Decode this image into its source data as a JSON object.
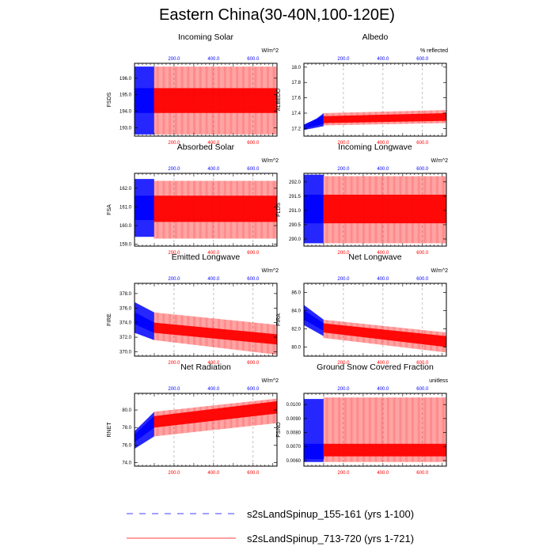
{
  "title": "Eastern China(30-40N,100-120E)",
  "colors": {
    "blue": "#0000ff",
    "red": "#ff0000",
    "grid": "#999999"
  },
  "legend": [
    {
      "label": "s2sLandSpinup_155-161 (yrs 1-100)",
      "color": "#0000ff",
      "dash": "dashed"
    },
    {
      "label": "s2sLandSpinup_713-720 (yrs 1-721)",
      "color": "#ff0000",
      "dash": "solid"
    }
  ],
  "chart_data": [
    {
      "type": "line",
      "title": "Incoming Solar",
      "ylabel": "FSDS",
      "units": "W/m^2",
      "xlim": [
        0,
        721
      ],
      "ylim": [
        192.5,
        196.9
      ],
      "yticks": [
        193.0,
        194.0,
        195.0,
        196.0
      ],
      "ytick_labels": [
        "193.0",
        "194.0",
        "195.0",
        "196.0"
      ],
      "xticks": [
        200,
        400,
        600
      ],
      "xtick_labels": [
        "200.0",
        "400.0",
        "600.0"
      ],
      "series": [
        {
          "name": "s2sLandSpinup_155-161 (yrs 1-100)",
          "years": [
            1,
            100
          ],
          "env_top": [
            196.7,
            196.7
          ],
          "env_bot": [
            192.6,
            192.6
          ],
          "band_top": [
            195.4,
            195.4
          ],
          "band_bot": [
            193.9,
            193.9
          ]
        },
        {
          "name": "s2sLandSpinup_713-720 (yrs 1-721)",
          "years": [
            100,
            721
          ],
          "env_top": [
            196.7,
            196.7
          ],
          "env_bot": [
            192.6,
            192.6
          ],
          "band_top": [
            195.4,
            195.4
          ],
          "band_bot": [
            193.9,
            193.9
          ]
        }
      ]
    },
    {
      "type": "line",
      "title": "Albedo",
      "ylabel": "ALBEDO",
      "units": "% reflected",
      "xlim": [
        0,
        721
      ],
      "ylim": [
        17.1,
        18.05
      ],
      "yticks": [
        17.2,
        17.4,
        17.6,
        17.8,
        18.0
      ],
      "ytick_labels": [
        "17.2",
        "17.4",
        "17.6",
        "17.8",
        "18.0"
      ],
      "xticks": [
        200,
        400,
        600
      ],
      "xtick_labels": [
        "200.0",
        "400.0",
        "600.0"
      ],
      "series": [
        {
          "name": "s2sLandSpinup_155-161 (yrs 1-100)",
          "years": [
            1,
            100
          ],
          "env_top": [
            17.2,
            17.4
          ],
          "env_bot": [
            17.18,
            17.23
          ],
          "band_top": [
            17.25,
            17.37
          ],
          "band_bot": [
            17.2,
            17.26
          ]
        },
        {
          "name": "s2sLandSpinup_713-720 (yrs 1-721)",
          "years": [
            100,
            721
          ],
          "env_top": [
            17.4,
            17.44
          ],
          "env_bot": [
            17.24,
            17.27
          ],
          "band_top": [
            17.36,
            17.4
          ],
          "band_bot": [
            17.27,
            17.3
          ]
        }
      ]
    },
    {
      "type": "line",
      "title": "Absorbed Solar",
      "ylabel": "FSA",
      "units": "W/m^2",
      "xlim": [
        0,
        721
      ],
      "ylim": [
        158.9,
        162.8
      ],
      "yticks": [
        159.0,
        160.0,
        161.0,
        162.0
      ],
      "ytick_labels": [
        "159.0",
        "160.0",
        "161.0",
        "162.0"
      ],
      "xticks": [
        200,
        400,
        600
      ],
      "xtick_labels": [
        "200.0",
        "400.0",
        "600.0"
      ],
      "series": [
        {
          "name": "s2sLandSpinup_155-161 (yrs 1-100)",
          "years": [
            1,
            100
          ],
          "env_top": [
            162.5,
            162.5
          ],
          "env_bot": [
            159.4,
            159.4
          ],
          "band_top": [
            161.6,
            161.6
          ],
          "band_bot": [
            160.3,
            160.3
          ]
        },
        {
          "name": "s2sLandSpinup_713-720 (yrs 1-721)",
          "years": [
            100,
            721
          ],
          "env_top": [
            162.4,
            162.4
          ],
          "env_bot": [
            159.3,
            159.3
          ],
          "band_top": [
            161.6,
            161.6
          ],
          "band_bot": [
            160.2,
            160.2
          ]
        }
      ]
    },
    {
      "type": "line",
      "title": "Incoming Longwave",
      "ylabel": "FLDS",
      "units": "W/m^2",
      "xlim": [
        0,
        721
      ],
      "ylim": [
        289.75,
        292.3
      ],
      "yticks": [
        290.0,
        290.5,
        291.0,
        291.5,
        292.0
      ],
      "ytick_labels": [
        "290.0",
        "290.5",
        "291.0",
        "291.5",
        "292.0"
      ],
      "xticks": [
        200,
        400,
        600
      ],
      "xtick_labels": [
        "200.0",
        "400.0",
        "600.0"
      ],
      "series": [
        {
          "name": "s2sLandSpinup_155-161 (yrs 1-100)",
          "years": [
            1,
            100
          ],
          "env_top": [
            292.25,
            292.25
          ],
          "env_bot": [
            289.85,
            289.85
          ],
          "band_top": [
            291.55,
            291.55
          ],
          "band_bot": [
            290.55,
            290.55
          ]
        },
        {
          "name": "s2sLandSpinup_713-720 (yrs 1-721)",
          "years": [
            100,
            721
          ],
          "env_top": [
            292.2,
            292.2
          ],
          "env_bot": [
            289.85,
            289.85
          ],
          "band_top": [
            291.55,
            291.55
          ],
          "band_bot": [
            290.55,
            290.55
          ]
        }
      ]
    },
    {
      "type": "line",
      "title": "Emitted Longwave",
      "ylabel": "FIRE",
      "units": "W/m^2",
      "xlim": [
        0,
        721
      ],
      "ylim": [
        369.4,
        379.4
      ],
      "yticks": [
        370.0,
        372.0,
        374.0,
        376.0,
        378.0
      ],
      "ytick_labels": [
        "370.0",
        "372.0",
        "374.0",
        "376.0",
        "378.0"
      ],
      "xticks": [
        200,
        400,
        600
      ],
      "xtick_labels": [
        "200.0",
        "400.0",
        "600.0"
      ],
      "series": [
        {
          "name": "s2sLandSpinup_155-161 (yrs 1-100)",
          "years": [
            1,
            100
          ],
          "env_top": [
            376.8,
            375.4
          ],
          "env_bot": [
            372.6,
            371.6
          ],
          "band_top": [
            375.4,
            374.0
          ],
          "band_bot": [
            373.8,
            372.6
          ]
        },
        {
          "name": "s2sLandSpinup_713-720 (yrs 1-721)",
          "years": [
            100,
            721
          ],
          "env_top": [
            375.4,
            373.7
          ],
          "env_bot": [
            371.6,
            369.6
          ],
          "band_top": [
            374.0,
            372.4
          ],
          "band_bot": [
            372.6,
            371.0
          ]
        }
      ]
    },
    {
      "type": "line",
      "title": "Net Longwave",
      "ylabel": "FIRA",
      "units": "W/m^2",
      "xlim": [
        0,
        721
      ],
      "ylim": [
        79.0,
        87.0
      ],
      "yticks": [
        80.0,
        82.0,
        84.0,
        86.0
      ],
      "ytick_labels": [
        "80.0",
        "82.0",
        "84.0",
        "86.0"
      ],
      "xticks": [
        200,
        400,
        600
      ],
      "xtick_labels": [
        "200.0",
        "400.0",
        "600.0"
      ],
      "series": [
        {
          "name": "s2sLandSpinup_155-161 (yrs 1-100)",
          "years": [
            1,
            100
          ],
          "env_top": [
            84.6,
            83.0
          ],
          "env_bot": [
            82.4,
            81.2
          ],
          "band_top": [
            84.0,
            82.6
          ],
          "band_bot": [
            83.0,
            81.8
          ]
        },
        {
          "name": "s2sLandSpinup_713-720 (yrs 1-721)",
          "years": [
            100,
            721
          ],
          "env_top": [
            83.0,
            81.6
          ],
          "env_bot": [
            81.0,
            79.4
          ],
          "band_top": [
            82.6,
            81.2
          ],
          "band_bot": [
            81.6,
            80.0
          ]
        }
      ]
    },
    {
      "type": "line",
      "title": "Net Radiation",
      "ylabel": "RNET",
      "units": "W/m^2",
      "xlim": [
        0,
        721
      ],
      "ylim": [
        73.6,
        81.9
      ],
      "yticks": [
        74.0,
        76.0,
        78.0,
        80.0
      ],
      "ytick_labels": [
        "74.0",
        "76.0",
        "78.0",
        "80.0"
      ],
      "xticks": [
        200,
        400,
        600
      ],
      "xtick_labels": [
        "200.0",
        "400.0",
        "600.0"
      ],
      "series": [
        {
          "name": "s2sLandSpinup_155-161 (yrs 1-100)",
          "years": [
            1,
            100
          ],
          "env_top": [
            77.6,
            79.8
          ],
          "env_bot": [
            75.6,
            77.0
          ],
          "band_top": [
            77.2,
            79.3
          ],
          "band_bot": [
            76.4,
            78.0
          ]
        },
        {
          "name": "s2sLandSpinup_713-720 (yrs 1-721)",
          "years": [
            100,
            721
          ],
          "env_top": [
            79.8,
            81.3
          ],
          "env_bot": [
            77.0,
            78.5
          ],
          "band_top": [
            79.3,
            81.0
          ],
          "band_bot": [
            78.0,
            79.6
          ]
        }
      ]
    },
    {
      "type": "line",
      "title": "Ground Snow Covered Fraction",
      "ylabel": "FSNO",
      "units": "unitless",
      "xlim": [
        0,
        721
      ],
      "ylim": [
        0.0056,
        0.0108
      ],
      "yticks": [
        0.006,
        0.007,
        0.008,
        0.009,
        0.01
      ],
      "ytick_labels": [
        "0.0060",
        "0.0070",
        "0.0080",
        "0.0090",
        "0.0100"
      ],
      "xticks": [
        200,
        400,
        600
      ],
      "xtick_labels": [
        "200.0",
        "400.0",
        "600.0"
      ],
      "series": [
        {
          "name": "s2sLandSpinup_155-161 (yrs 1-100)",
          "years": [
            1,
            100
          ],
          "env_top": [
            0.0104,
            0.0104
          ],
          "env_bot": [
            0.0059,
            0.0059
          ],
          "band_top": [
            0.0072,
            0.0072
          ],
          "band_bot": [
            0.0061,
            0.0061
          ]
        },
        {
          "name": "s2sLandSpinup_713-720 (yrs 1-721)",
          "years": [
            100,
            721
          ],
          "env_top": [
            0.0105,
            0.0105
          ],
          "env_bot": [
            0.0059,
            0.0059
          ],
          "band_top": [
            0.0072,
            0.0072
          ],
          "band_bot": [
            0.0063,
            0.0063
          ]
        }
      ]
    }
  ]
}
